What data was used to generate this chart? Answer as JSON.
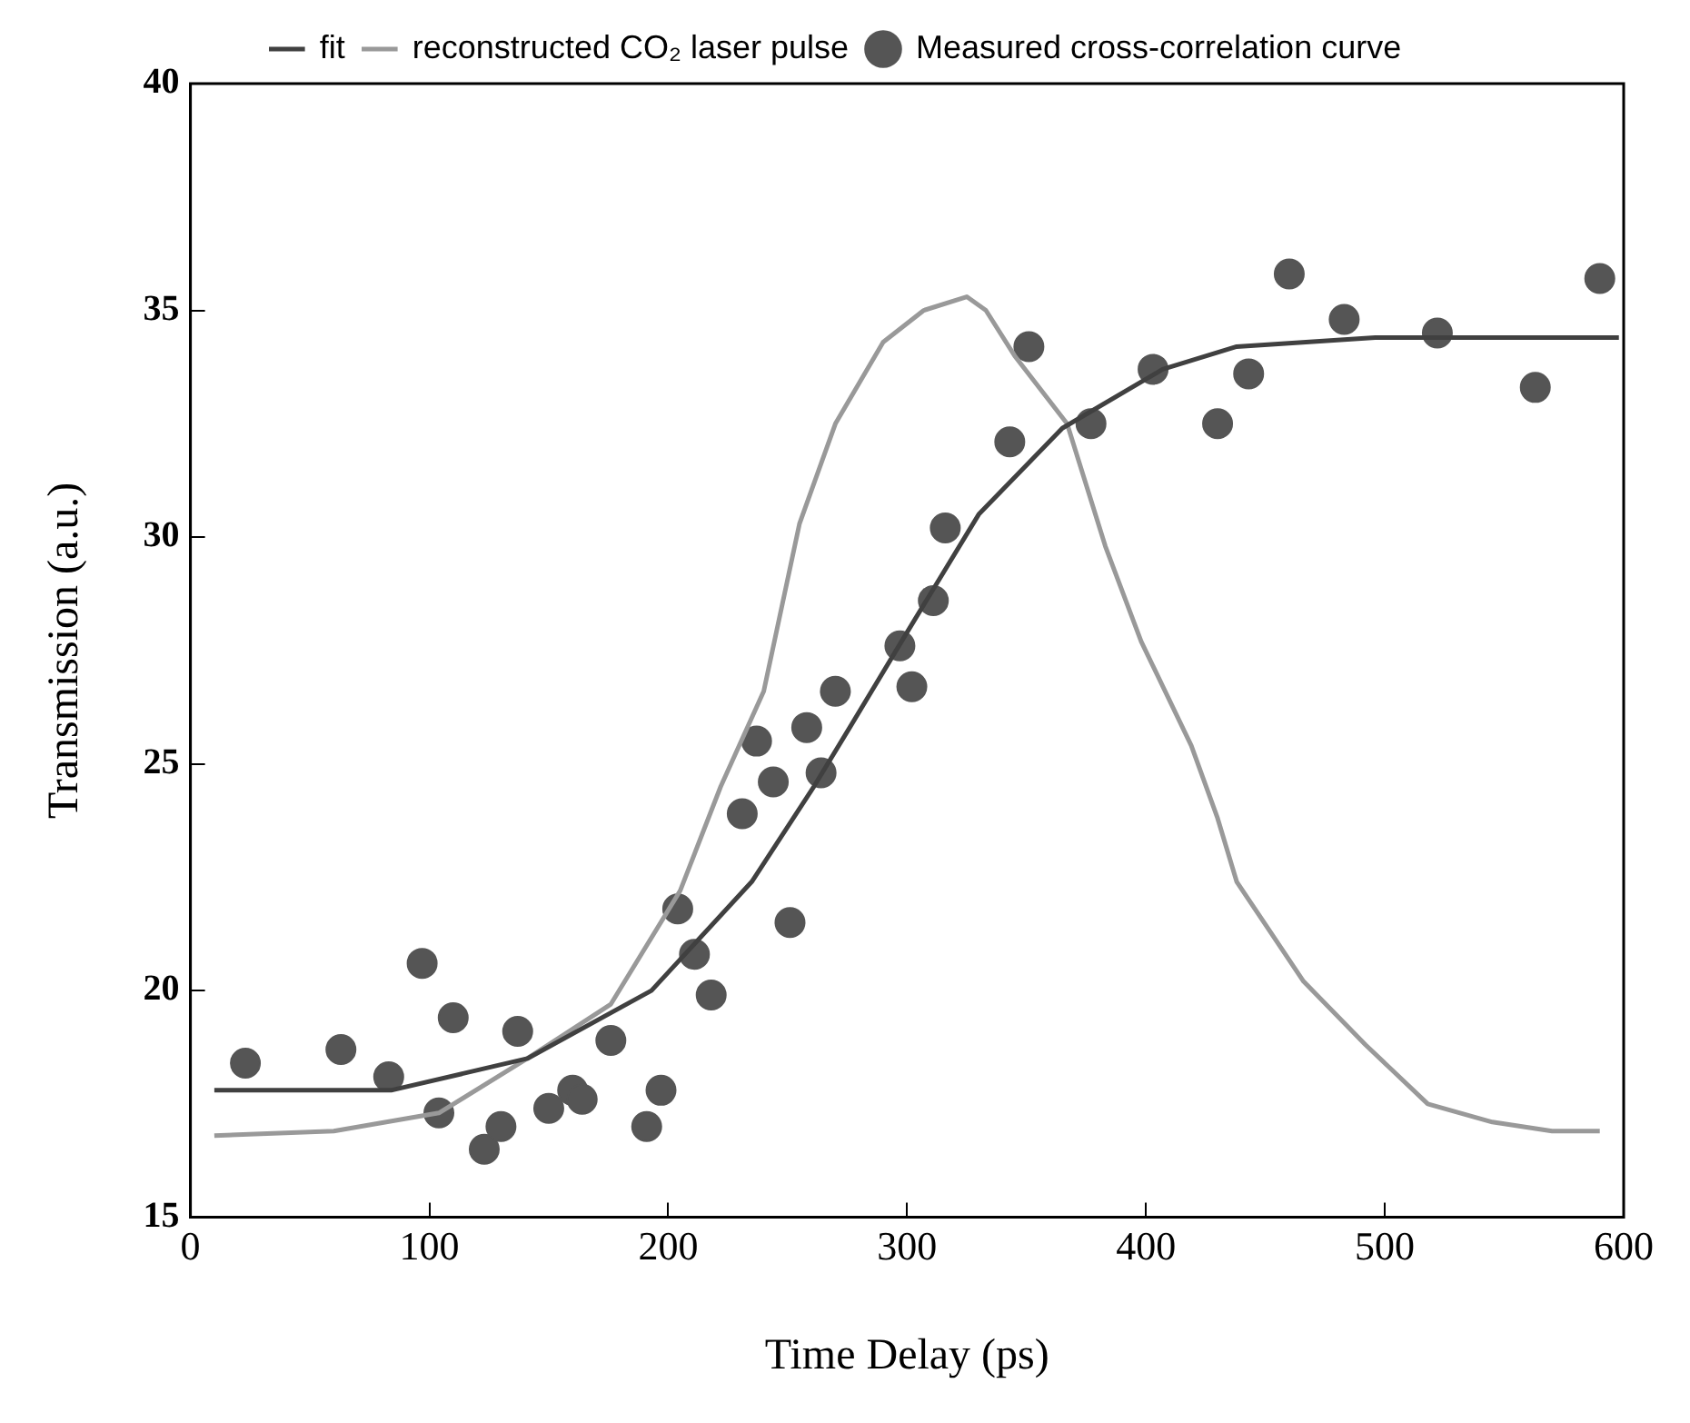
{
  "chart_data": {
    "type": "scatter",
    "xlabel": "Time Delay (ps)",
    "ylabel": "Transmission (a.u.)",
    "xlim": [
      0,
      600
    ],
    "ylim": [
      15,
      40
    ],
    "xticks": [
      0,
      100,
      200,
      300,
      400,
      500,
      600
    ],
    "yticks": [
      15,
      20,
      25,
      30,
      35,
      40
    ],
    "grid": false,
    "legend": "top",
    "series": [
      {
        "name": "Measured cross-correlation curve",
        "marker": "circle",
        "color": "#555555",
        "x": [
          23,
          63,
          83,
          97,
          104,
          110,
          123,
          130,
          137,
          150,
          160,
          164,
          176,
          191,
          197,
          204,
          211,
          218,
          231,
          237,
          244,
          251,
          258,
          264,
          270,
          297,
          302,
          311,
          316,
          343,
          351,
          377,
          403,
          430,
          443,
          460,
          483,
          522,
          563,
          590
        ],
        "values": [
          18.4,
          18.7,
          18.1,
          20.6,
          17.3,
          19.4,
          16.5,
          17.0,
          19.1,
          17.4,
          17.8,
          17.6,
          18.9,
          17.0,
          17.8,
          21.8,
          20.8,
          19.9,
          23.9,
          25.5,
          24.6,
          21.5,
          25.8,
          24.8,
          26.6,
          27.6,
          26.7,
          28.6,
          30.2,
          32.1,
          34.2,
          32.5,
          33.7,
          32.5,
          33.6,
          35.8,
          34.8,
          34.5,
          33.3,
          35.7
        ]
      },
      {
        "name": "fit",
        "type": "line",
        "marker": "none",
        "line_style": "solid",
        "color": "#404040",
        "x": [
          10,
          84,
          141,
          193,
          235,
          261,
          276,
          300,
          330,
          365,
          407,
          438,
          496,
          598
        ],
        "values": [
          17.8,
          17.8,
          18.5,
          20.0,
          22.4,
          24.5,
          25.8,
          27.9,
          30.5,
          32.4,
          33.7,
          34.2,
          34.4,
          34.4
        ]
      },
      {
        "name": "reconstructed CO₂ laser pulse",
        "type": "line",
        "marker": "none",
        "line_style": "solid",
        "color": "#999999",
        "x": [
          10,
          60,
          104,
          141,
          176,
          205,
          222,
          240,
          255,
          270,
          290,
          307,
          325,
          333,
          345,
          367,
          383,
          398,
          419,
          430,
          438,
          466,
          492,
          518,
          545,
          570,
          590
        ],
        "values": [
          16.8,
          16.9,
          17.3,
          18.5,
          19.7,
          22.2,
          24.5,
          26.6,
          30.3,
          32.5,
          34.3,
          35.0,
          35.3,
          35.0,
          34.0,
          32.5,
          29.8,
          27.7,
          25.4,
          23.8,
          22.4,
          20.2,
          18.8,
          17.5,
          17.1,
          16.9,
          16.9
        ]
      }
    ]
  }
}
